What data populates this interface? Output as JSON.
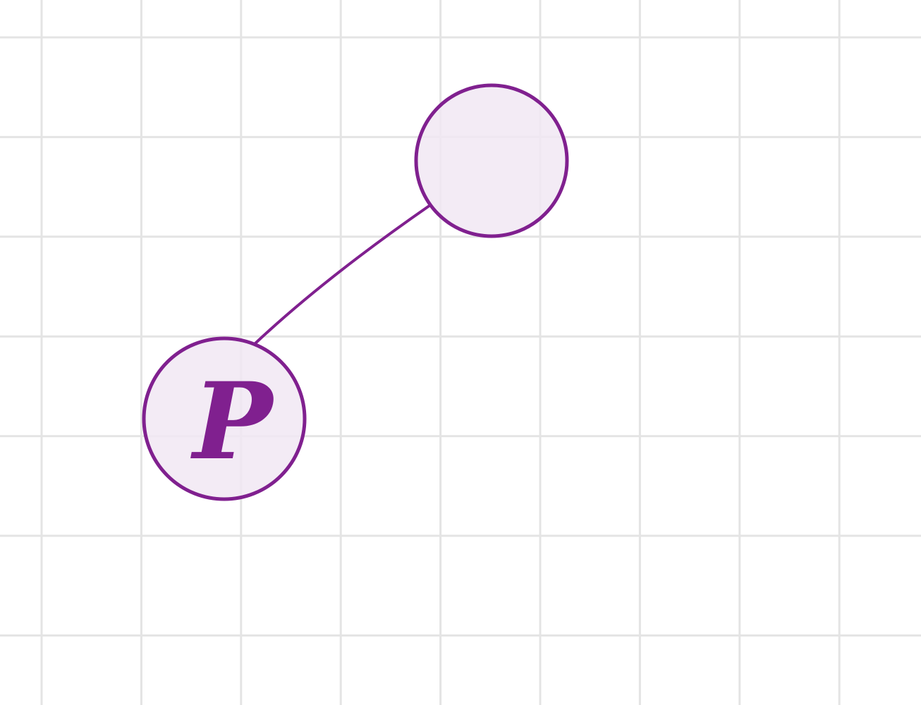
{
  "diagram": {
    "colors": {
      "stroke": "#80208f",
      "fill": "#f1e7f3",
      "grid": "#e4e4e4",
      "background": "#ffffff"
    },
    "nodes": [
      {
        "id": "node-top-right",
        "label": ""
      },
      {
        "id": "node-p",
        "label": "P"
      }
    ],
    "edges": [
      {
        "from": "node-p",
        "to": "node-top-right"
      }
    ]
  }
}
